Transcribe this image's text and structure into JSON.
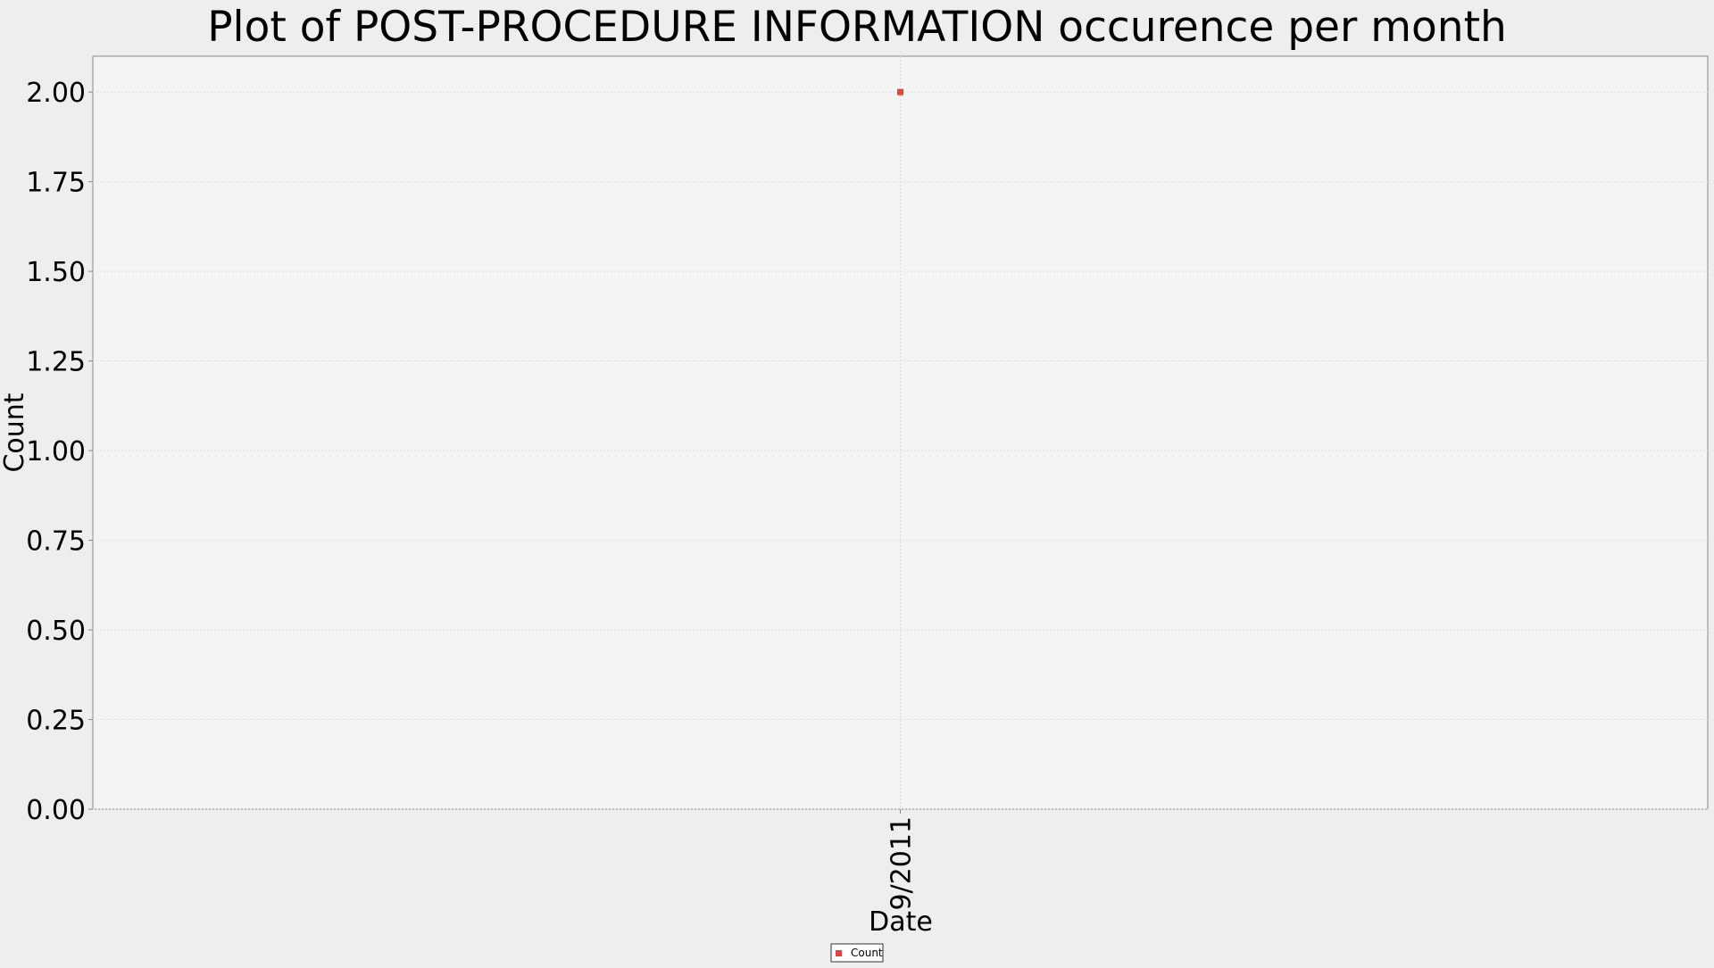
{
  "chart_data": {
    "type": "scatter",
    "title": "Plot of POST-PROCEDURE INFORMATION occurence per month",
    "xlabel": "Date",
    "ylabel": "Count",
    "categories": [
      "9/2011"
    ],
    "series": [
      {
        "name": "Count",
        "values": [
          2
        ],
        "color": "#e8413f"
      }
    ],
    "ylim": [
      0,
      2.1
    ],
    "yticks": [
      "0.00",
      "0.25",
      "0.50",
      "0.75",
      "1.00",
      "1.25",
      "1.50",
      "1.75",
      "2.00"
    ],
    "grid": true,
    "legend_position": "bottom-center"
  },
  "colors": {
    "background": "#eeeeee",
    "plot_background": "#f4f4f4",
    "grid": "#dddddd",
    "axis": "#888888",
    "marker": "#e8413f"
  }
}
